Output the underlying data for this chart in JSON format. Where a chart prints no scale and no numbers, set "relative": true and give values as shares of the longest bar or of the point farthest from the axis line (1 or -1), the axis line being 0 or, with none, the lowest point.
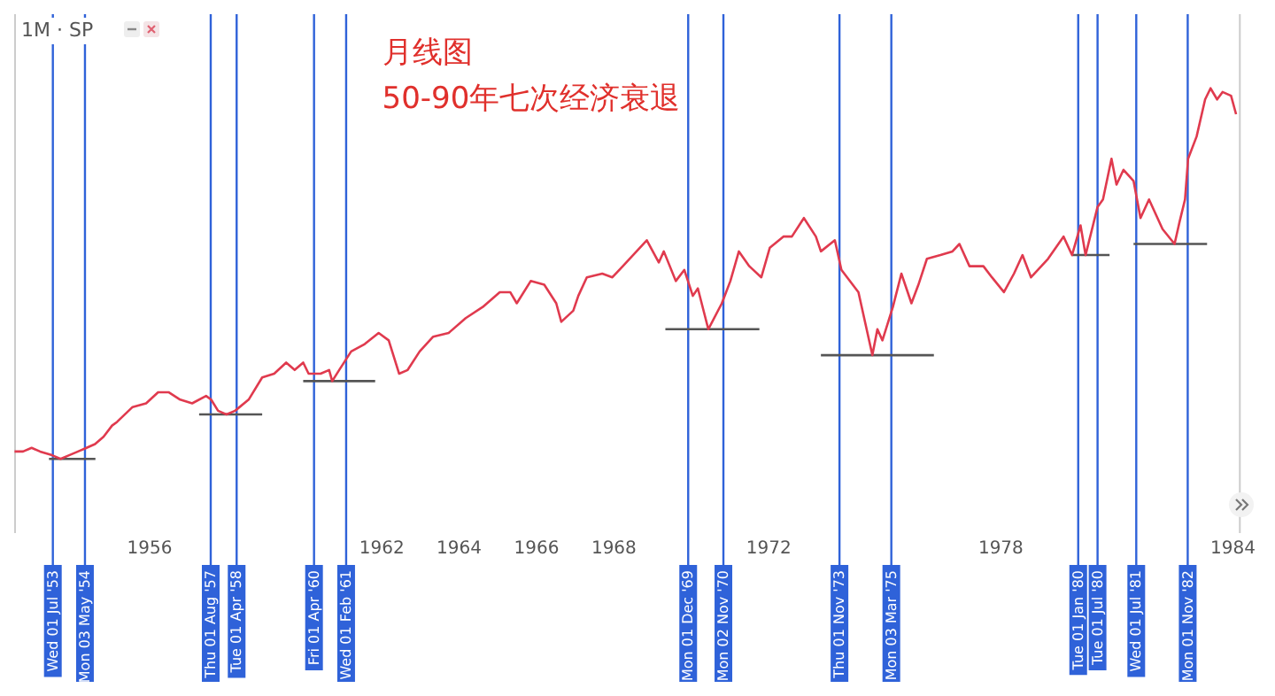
{
  "chart_data": {
    "type": "line",
    "title": "1M · SP",
    "annotations": [
      "月线图",
      "50-90年七次经济衰退"
    ],
    "relative": true,
    "marker": "none",
    "line_style": "solid",
    "legend": false,
    "grid": false,
    "xlim": [
      1952.5,
      1984.2
    ],
    "xticks": [
      1956,
      1962,
      1964,
      1966,
      1968,
      1972,
      1978,
      1984
    ],
    "series": [
      {
        "color": "#e03a4e",
        "x": [
          1952.51,
          1952.73,
          1952.95,
          1953.17,
          1953.48,
          1953.7,
          1953.92,
          1954.15,
          1954.37,
          1954.59,
          1954.81,
          1955.03,
          1955.16,
          1955.56,
          1955.91,
          1956.22,
          1956.49,
          1956.79,
          1957.1,
          1957.46,
          1957.59,
          1957.77,
          1957.99,
          1958.21,
          1958.56,
          1958.91,
          1959.22,
          1959.53,
          1959.75,
          1959.97,
          1960.11,
          1960.42,
          1960.64,
          1960.72,
          1960.9,
          1961.21,
          1961.56,
          1961.92,
          1962.18,
          1962.45,
          1962.67,
          1962.98,
          1963.33,
          1963.73,
          1964.17,
          1964.61,
          1965.05,
          1965.32,
          1965.49,
          1965.85,
          1966.2,
          1966.51,
          1966.64,
          1966.95,
          1967.08,
          1967.3,
          1967.7,
          1967.96,
          1968.23,
          1968.85,
          1969.16,
          1969.29,
          1969.6,
          1969.82,
          1970.04,
          1970.17,
          1970.44,
          1970.79,
          1971.01,
          1971.23,
          1971.5,
          1971.81,
          1972.03,
          1972.38,
          1972.6,
          1972.91,
          1973.22,
          1973.35,
          1973.71,
          1973.88,
          1974.32,
          1974.68,
          1974.81,
          1974.94,
          1975.21,
          1975.43,
          1975.69,
          1975.87,
          1976.09,
          1976.44,
          1976.75,
          1976.93,
          1977.19,
          1977.55,
          1977.77,
          1978.08,
          1978.34,
          1978.56,
          1978.78,
          1979.22,
          1979.62,
          1979.84,
          1980.06,
          1980.19,
          1980.5,
          1980.64,
          1980.86,
          1980.99,
          1981.17,
          1981.43,
          1981.61,
          1981.83,
          1982.18,
          1982.49,
          1982.62,
          1982.76,
          1982.84,
          1983.06,
          1983.28,
          1983.42,
          1983.59,
          1983.73,
          1983.95,
          1984.08
        ],
        "values": [
          0.02,
          0.02,
          0.03,
          0.02,
          0.01,
          0.0,
          0.01,
          0.02,
          0.03,
          0.04,
          0.06,
          0.09,
          0.1,
          0.14,
          0.15,
          0.18,
          0.18,
          0.16,
          0.15,
          0.17,
          0.16,
          0.13,
          0.12,
          0.13,
          0.16,
          0.22,
          0.23,
          0.26,
          0.24,
          0.26,
          0.23,
          0.23,
          0.24,
          0.21,
          0.24,
          0.29,
          0.31,
          0.34,
          0.32,
          0.23,
          0.24,
          0.29,
          0.33,
          0.34,
          0.38,
          0.41,
          0.45,
          0.45,
          0.42,
          0.48,
          0.47,
          0.42,
          0.37,
          0.4,
          0.44,
          0.49,
          0.5,
          0.49,
          0.52,
          0.59,
          0.53,
          0.56,
          0.48,
          0.51,
          0.44,
          0.46,
          0.35,
          0.42,
          0.48,
          0.56,
          0.52,
          0.49,
          0.57,
          0.6,
          0.6,
          0.65,
          0.6,
          0.56,
          0.59,
          0.51,
          0.45,
          0.28,
          0.35,
          0.32,
          0.41,
          0.5,
          0.42,
          0.47,
          0.54,
          0.55,
          0.56,
          0.58,
          0.52,
          0.52,
          0.49,
          0.45,
          0.5,
          0.55,
          0.49,
          0.54,
          0.6,
          0.55,
          0.63,
          0.55,
          0.68,
          0.7,
          0.81,
          0.74,
          0.78,
          0.75,
          0.65,
          0.7,
          0.62,
          0.58,
          0.64,
          0.7,
          0.81,
          0.87,
          0.97,
          1.0,
          0.97,
          0.99,
          0.98,
          0.93
        ]
      },
      {
        "color": "#555555",
        "x": [
          1953.4,
          1954.6
        ],
        "values": [
          0.0,
          0.0
        ]
      },
      {
        "color": "#555555",
        "x": [
          1957.28,
          1958.91
        ],
        "values": [
          0.12,
          0.12
        ]
      },
      {
        "color": "#555555",
        "x": [
          1959.97,
          1961.83
        ],
        "values": [
          0.21,
          0.21
        ]
      },
      {
        "color": "#555555",
        "x": [
          1969.33,
          1971.76
        ],
        "values": [
          0.35,
          0.35
        ]
      },
      {
        "color": "#555555",
        "x": [
          1973.35,
          1976.27
        ],
        "values": [
          0.28,
          0.28
        ]
      },
      {
        "color": "#555555",
        "x": [
          1979.84,
          1980.81
        ],
        "values": [
          0.55,
          0.55
        ]
      },
      {
        "color": "#555555",
        "x": [
          1981.43,
          1983.33
        ],
        "values": [
          0.58,
          0.58
        ]
      }
    ],
    "ref_lines": [
      {
        "axis": "x",
        "value": 1953.5,
        "label": "Wed 01 Jul '53",
        "color": "#2f62d9"
      },
      {
        "axis": "x",
        "value": 1954.33,
        "label": "Mon 03 May '54",
        "color": "#2f62d9"
      },
      {
        "axis": "x",
        "value": 1957.58,
        "label": "Thu 01 Aug '57",
        "color": "#2f62d9"
      },
      {
        "axis": "x",
        "value": 1958.25,
        "label": "Tue 01 Apr '58",
        "color": "#2f62d9"
      },
      {
        "axis": "x",
        "value": 1960.25,
        "label": "Fri 01 Apr '60",
        "color": "#2f62d9"
      },
      {
        "axis": "x",
        "value": 1961.08,
        "label": "Wed 01 Feb '61",
        "color": "#2f62d9"
      },
      {
        "axis": "x",
        "value": 1969.92,
        "label": "Mon 01 Dec '69",
        "color": "#2f62d9"
      },
      {
        "axis": "x",
        "value": 1970.83,
        "label": "Mon 02 Nov '70",
        "color": "#2f62d9"
      },
      {
        "axis": "x",
        "value": 1973.83,
        "label": "Thu 01 Nov '73",
        "color": "#2f62d9"
      },
      {
        "axis": "x",
        "value": 1975.17,
        "label": "Mon 03 Mar '75",
        "color": "#2f62d9"
      },
      {
        "axis": "x",
        "value": 1980.0,
        "label": "Tue 01 Jan '80",
        "color": "#2f62d9"
      },
      {
        "axis": "x",
        "value": 1980.5,
        "label": "Tue 01 Jul '80",
        "color": "#2f62d9"
      },
      {
        "axis": "x",
        "value": 1981.5,
        "label": "Wed 01 Jul '81",
        "color": "#2f62d9"
      },
      {
        "axis": "x",
        "value": 1982.83,
        "label": "Mon 01 Nov '82",
        "color": "#2f62d9"
      }
    ]
  }
}
